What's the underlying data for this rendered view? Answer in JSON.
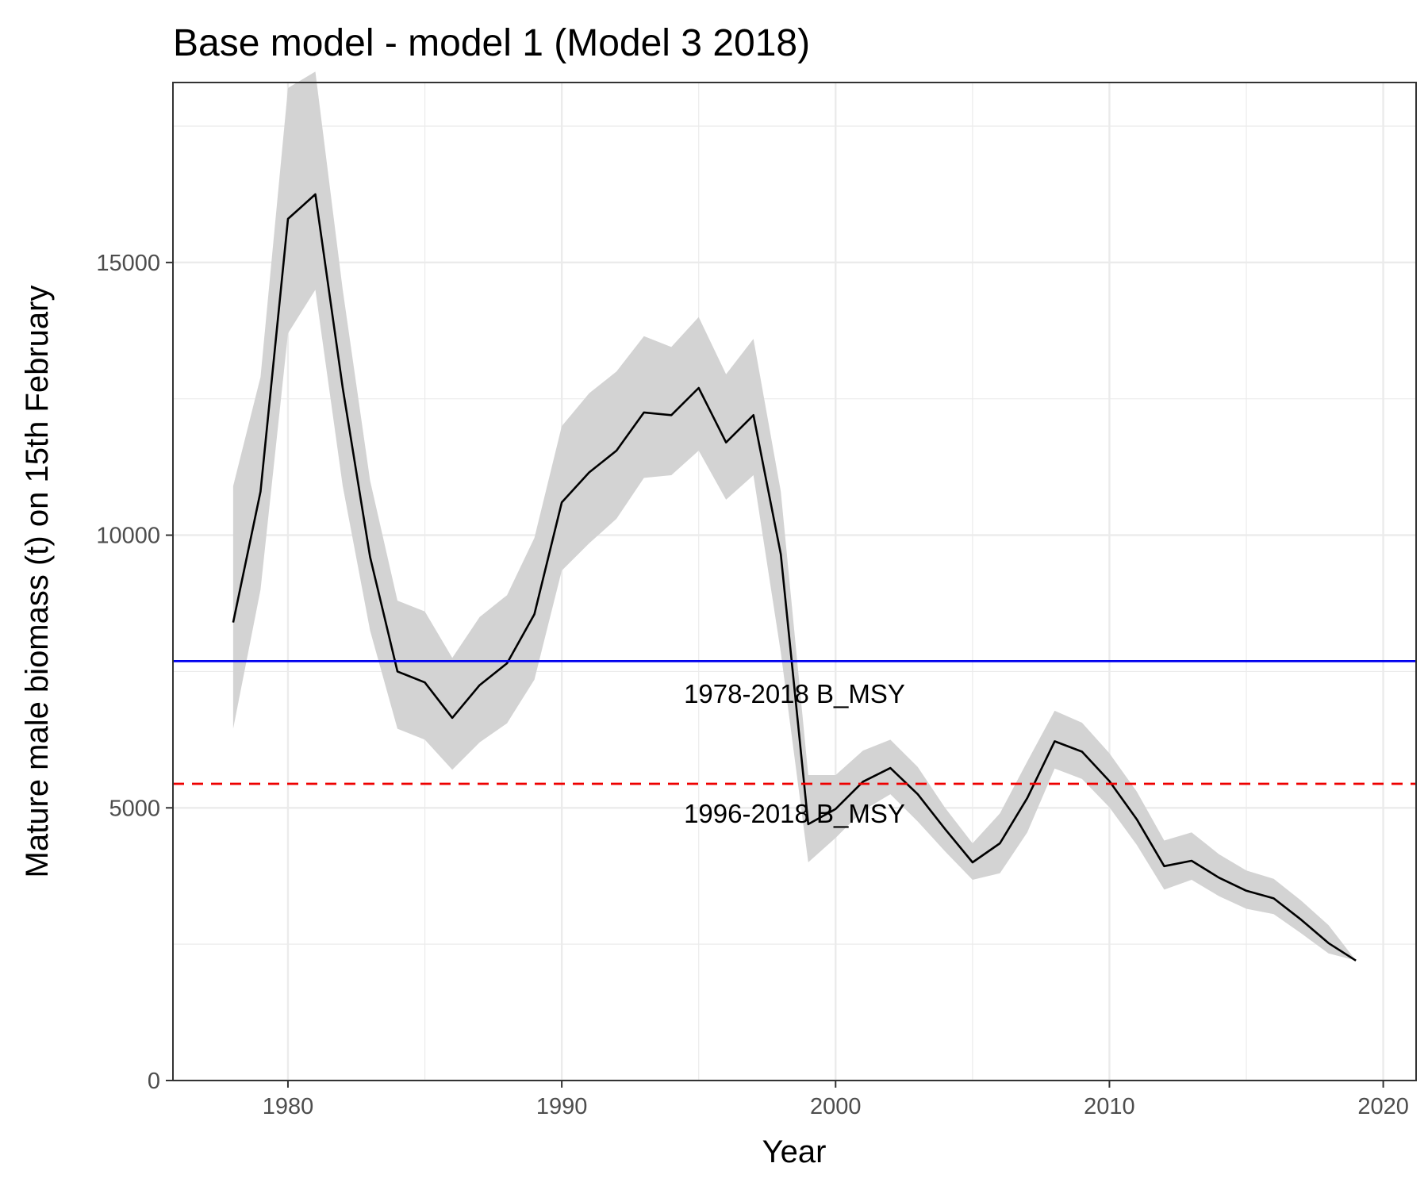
{
  "chart_data": {
    "type": "line",
    "title": "Base model - model 1 (Model 3 2018)",
    "xlabel": "Year",
    "ylabel": "Mature male biomass (t) on 15th February",
    "xlim": [
      1975.8,
      2021.2
    ],
    "ylim": [
      0,
      18300
    ],
    "x_ticks": [
      1980,
      1990,
      2000,
      2010,
      2020
    ],
    "y_ticks": [
      0,
      5000,
      10000,
      15000
    ],
    "x_tick_labels": [
      "1980",
      "1990",
      "2000",
      "2010",
      "2020"
    ],
    "y_tick_labels": [
      "0",
      "5000",
      "10000",
      "15000"
    ],
    "grid": true,
    "legend": "none",
    "series": [
      {
        "x": [
          1978,
          1979,
          1980,
          1981,
          1982,
          1983,
          1984,
          1985,
          1986,
          1987,
          1988,
          1989,
          1990,
          1991,
          1992,
          1993,
          1994,
          1995,
          1996,
          1997,
          1998,
          1999,
          2000,
          2001,
          2002,
          2003,
          2004,
          2005,
          2006,
          2007,
          2008,
          2009,
          2010,
          2011,
          2012,
          2013,
          2014,
          2015,
          2016,
          2017,
          2018,
          2019
        ],
        "y": [
          8400,
          10800,
          15800,
          16250,
          12700,
          9600,
          7500,
          7300,
          6650,
          7250,
          7650,
          8550,
          10600,
          11150,
          11550,
          12250,
          12200,
          12700,
          11700,
          12200,
          9650,
          4700,
          4980,
          5480,
          5730,
          5250,
          4610,
          4000,
          4350,
          5180,
          6220,
          6030,
          5490,
          4790,
          3930,
          4030,
          3720,
          3480,
          3340,
          2950,
          2520,
          2200
        ],
        "lower": [
          6450,
          9000,
          13700,
          14500,
          10900,
          8250,
          6450,
          6250,
          5700,
          6200,
          6550,
          7350,
          9350,
          9850,
          10300,
          11050,
          11100,
          11550,
          10650,
          11100,
          7850,
          4000,
          4450,
          4950,
          5250,
          4750,
          4200,
          3680,
          3800,
          4550,
          5720,
          5530,
          5010,
          4320,
          3500,
          3680,
          3380,
          3150,
          3050,
          2700,
          2330,
          2200
        ],
        "upper": [
          10900,
          12900,
          18200,
          18500,
          14500,
          11000,
          8800,
          8600,
          7750,
          8500,
          8900,
          9950,
          12000,
          12600,
          13000,
          13650,
          13450,
          14000,
          12950,
          13600,
          10800,
          5600,
          5600,
          6050,
          6250,
          5750,
          5000,
          4350,
          4900,
          5850,
          6780,
          6560,
          6000,
          5300,
          4400,
          4550,
          4150,
          3850,
          3700,
          3300,
          2850,
          2200
        ]
      }
    ],
    "reference_lines": [
      {
        "label": "1978-2018 B_MSY",
        "y": 7690,
        "color": "#0000ee",
        "style": "solid",
        "label_x": 1998.5,
        "label_y": 7100
      },
      {
        "label": "1996-2018 B_MSY",
        "y": 5440,
        "color": "#ee0000",
        "style": "dashed",
        "label_x": 1998.5,
        "label_y": 4900
      }
    ],
    "colors": {
      "line": "#000000",
      "band": "#d3d3d3",
      "grid": "#ebebeb",
      "panel_border": "#333333"
    }
  }
}
